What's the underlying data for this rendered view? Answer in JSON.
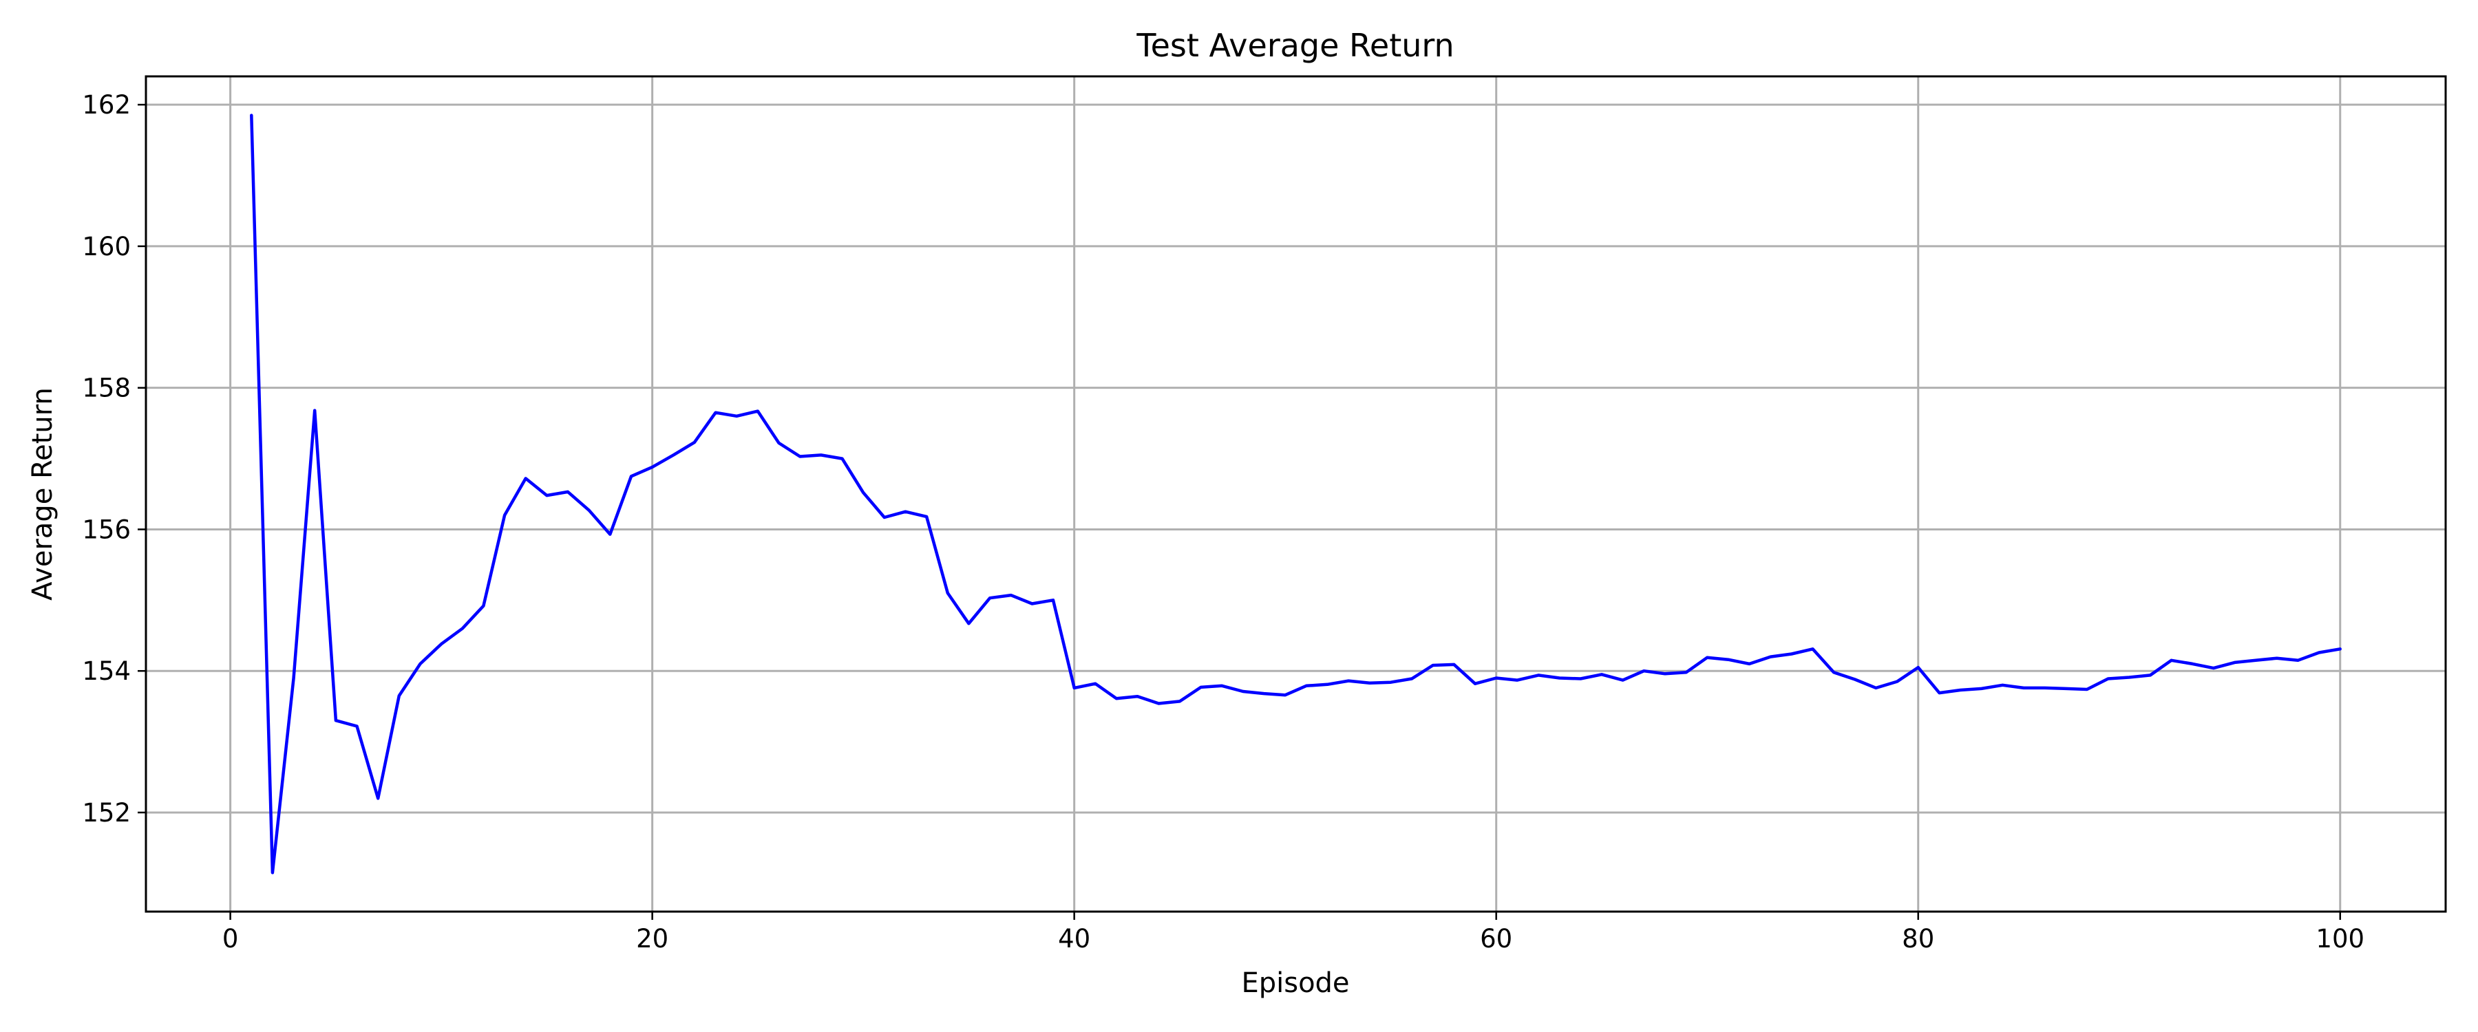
{
  "chart_data": {
    "type": "line",
    "title": "Test Average Return",
    "xlabel": "Episode",
    "ylabel": "Average Return",
    "xlim": [
      -4,
      105
    ],
    "ylim": [
      150.6,
      162.4
    ],
    "xticks": [
      0,
      20,
      40,
      60,
      80,
      100
    ],
    "yticks": [
      152,
      154,
      156,
      158,
      160,
      162
    ],
    "grid": true,
    "legend": "none",
    "colors": {
      "series": "#0000ff",
      "grid": "#b0b0b0",
      "axes": "#000000"
    },
    "x": [
      1,
      2,
      3,
      4,
      5,
      6,
      7,
      8,
      9,
      10,
      11,
      12,
      13,
      14,
      15,
      16,
      17,
      18,
      19,
      20,
      21,
      22,
      23,
      24,
      25,
      26,
      27,
      28,
      29,
      30,
      31,
      32,
      33,
      34,
      35,
      36,
      37,
      38,
      39,
      40,
      41,
      42,
      43,
      44,
      45,
      46,
      47,
      48,
      49,
      50,
      51,
      52,
      53,
      54,
      55,
      56,
      57,
      58,
      59,
      60,
      61,
      62,
      63,
      64,
      65,
      66,
      67,
      68,
      69,
      70,
      71,
      72,
      73,
      74,
      75,
      76,
      77,
      78,
      79,
      80,
      81,
      82,
      83,
      84,
      85,
      86,
      87,
      88,
      89,
      90,
      91,
      92,
      93,
      94,
      95,
      96,
      97,
      98,
      99,
      100
    ],
    "series": [
      {
        "values": [
          161.85,
          151.15,
          153.9,
          157.68,
          153.3,
          153.22,
          152.2,
          153.65,
          154.1,
          154.38,
          154.6,
          154.92,
          156.2,
          156.72,
          156.48,
          156.53,
          156.27,
          155.93,
          156.75,
          156.88,
          157.05,
          157.23,
          157.65,
          157.6,
          157.67,
          157.22,
          157.03,
          157.05,
          157.0,
          156.52,
          156.17,
          156.25,
          156.18,
          155.1,
          154.67,
          155.03,
          155.07,
          154.95,
          155.0,
          153.76,
          153.82,
          153.61,
          153.64,
          153.54,
          153.57,
          153.77,
          153.79,
          153.71,
          153.68,
          153.66,
          153.79,
          153.81,
          153.86,
          153.83,
          153.84,
          153.89,
          154.08,
          154.09,
          153.82,
          153.9,
          153.87,
          153.94,
          153.9,
          153.89,
          153.95,
          153.87,
          154.0,
          153.96,
          153.98,
          154.19,
          154.16,
          154.1,
          154.2,
          154.24,
          154.31,
          153.98,
          153.88,
          153.76,
          153.85,
          154.05,
          153.69,
          153.73,
          153.75,
          153.8,
          153.76,
          153.76,
          153.75,
          153.74,
          153.89,
          153.91,
          153.94,
          154.15,
          154.1,
          154.04,
          154.12,
          154.15,
          154.18,
          154.15,
          154.26,
          154.31
        ]
      }
    ]
  }
}
